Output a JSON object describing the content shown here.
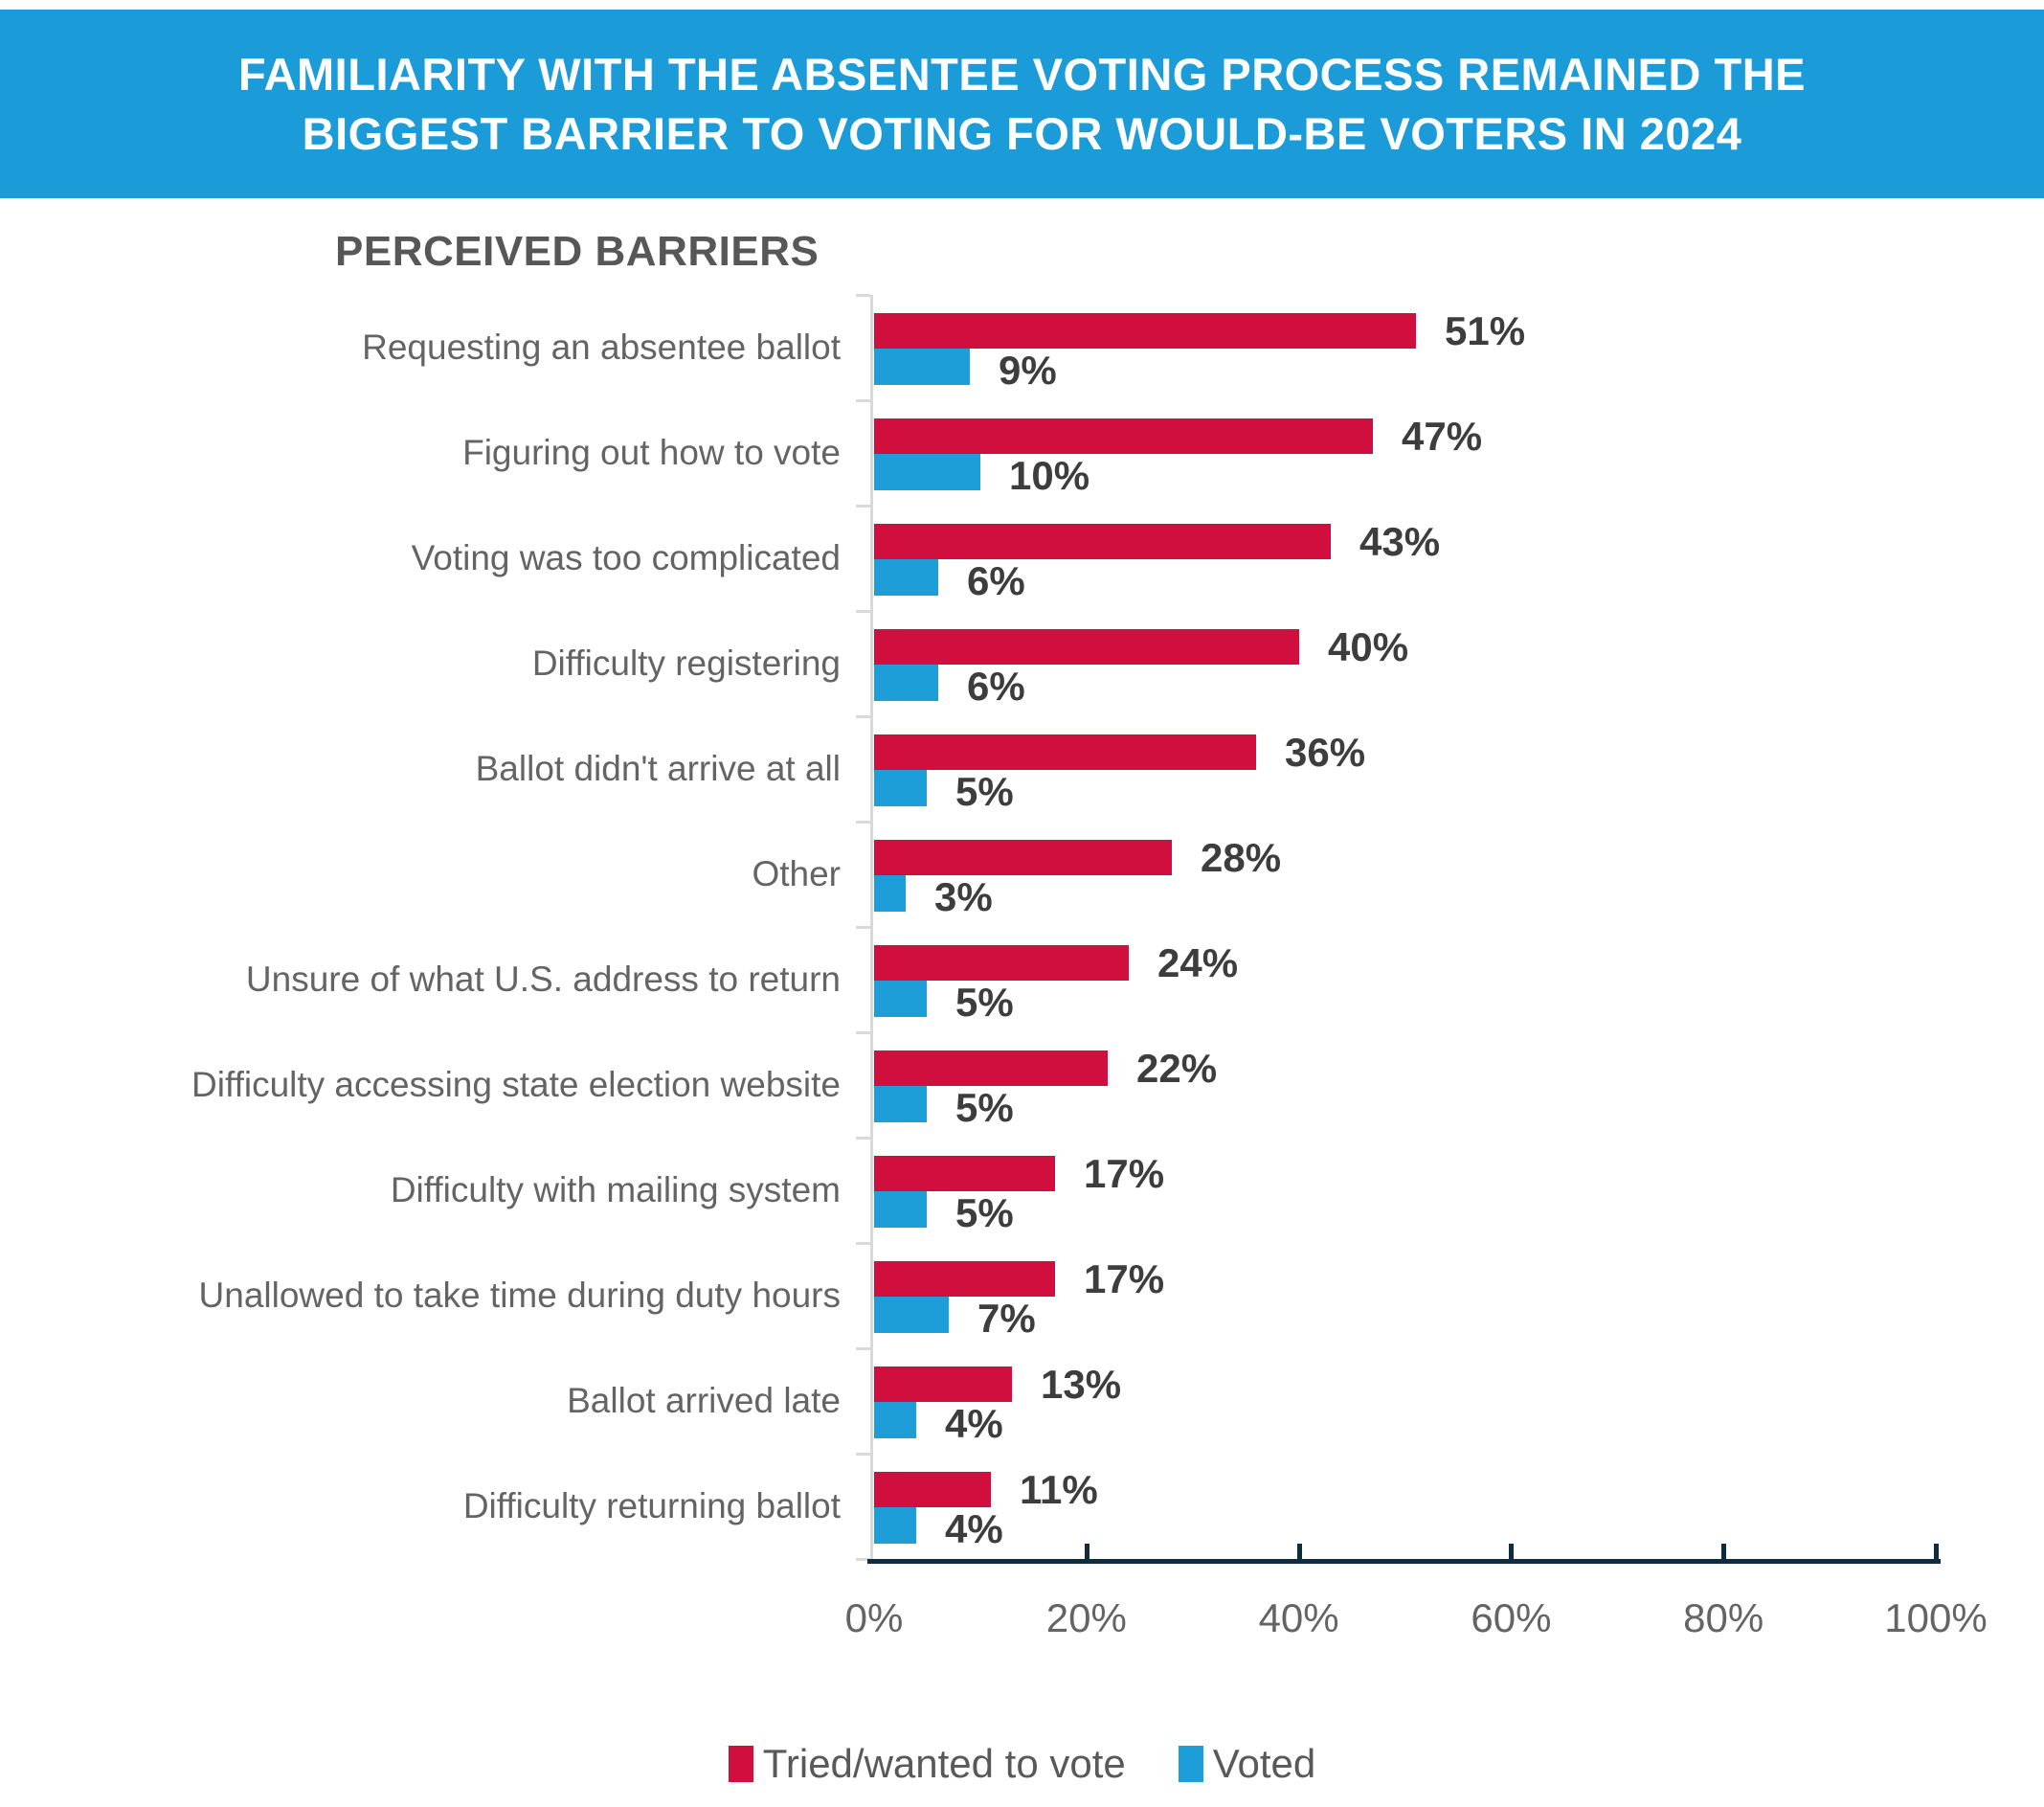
{
  "title": {
    "line1": "FAMILIARITY WITH THE ABSENTEE VOTING PROCESS REMAINED THE",
    "line2": "BIGGEST BARRIER TO VOTING FOR WOULD-BE VOTERS IN 2024"
  },
  "subtitle": "PERCEIVED BARRIERS",
  "colors": {
    "banner_blue": "#1b9cd8",
    "bar_red": "#d00f3f",
    "bar_blue": "#1e9ed9",
    "axis_navy": "#0d2c3d",
    "category_axis_gray": "#d9d9d9",
    "value_label": "#3d3d3d",
    "category_label": "#646464",
    "tick_label": "#646464",
    "legend_label": "#595959",
    "subtitle_gray": "#575757"
  },
  "legend": {
    "items": [
      {
        "label": "Tried/wanted to vote",
        "color": "#d00f3f"
      },
      {
        "label": "Voted",
        "color": "#1e9ed9"
      }
    ]
  },
  "chart_data": {
    "type": "bar",
    "orientation": "horizontal",
    "title": "FAMILIARITY WITH THE ABSENTEE VOTING PROCESS REMAINED THE BIGGEST BARRIER TO VOTING FOR WOULD-BE VOTERS IN 2024",
    "subtitle": "PERCEIVED BARRIERS",
    "categories": [
      "Requesting an absentee ballot",
      "Figuring out how to vote",
      "Voting was too complicated",
      "Difficulty registering",
      "Ballot didn't arrive at all",
      "Other",
      "Unsure of what U.S. address to return",
      "Difficulty accessing state election website",
      "Difficulty with mailing system",
      "Unallowed to take time during duty hours",
      "Ballot arrived late",
      "Difficulty returning ballot"
    ],
    "series": [
      {
        "name": "Tried/wanted to vote",
        "values": [
          51,
          47,
          43,
          40,
          36,
          28,
          24,
          22,
          17,
          17,
          13,
          11
        ]
      },
      {
        "name": "Voted",
        "values": [
          9,
          10,
          6,
          6,
          5,
          3,
          5,
          5,
          5,
          7,
          4,
          4
        ]
      }
    ],
    "value_label_format": "{v}%",
    "xlabel": "",
    "ylabel": "",
    "xlim": [
      0,
      100
    ],
    "x_ticks": [
      {
        "value": 0,
        "label": "0%"
      },
      {
        "value": 20,
        "label": "20%"
      },
      {
        "value": 40,
        "label": "40%"
      },
      {
        "value": 60,
        "label": "60%"
      },
      {
        "value": 80,
        "label": "80%"
      },
      {
        "value": 100,
        "label": "100%"
      }
    ],
    "grid": false,
    "legend_position": "bottom",
    "value_labels": true
  }
}
